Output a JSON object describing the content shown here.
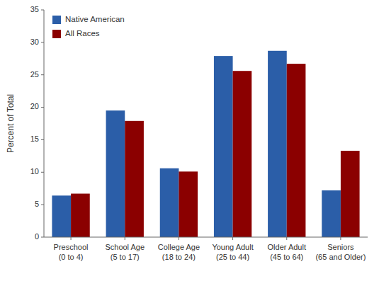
{
  "chart_data": {
    "type": "bar",
    "categories": [
      "Preschool\n(0 to 4)",
      "School Age\n(5 to 17)",
      "College Age\n(18 to 24)",
      "Young Adult\n(25 to 44)",
      "Older Adult\n(45 to 64)",
      "Seniors\n(65 and Older)"
    ],
    "series": [
      {
        "name": "Native American",
        "color": "#2B5EA8",
        "values": [
          6.4,
          19.5,
          10.6,
          27.9,
          28.7,
          7.2
        ]
      },
      {
        "name": "All Races",
        "color": "#8B0000",
        "values": [
          6.7,
          17.9,
          10.1,
          25.6,
          26.7,
          13.3
        ]
      }
    ],
    "ylabel": "Percent of Total",
    "ylim": [
      0,
      35
    ],
    "yticks": [
      0,
      5,
      10,
      15,
      20,
      25,
      30,
      35
    ],
    "legend": "upper-left",
    "grid": false
  }
}
